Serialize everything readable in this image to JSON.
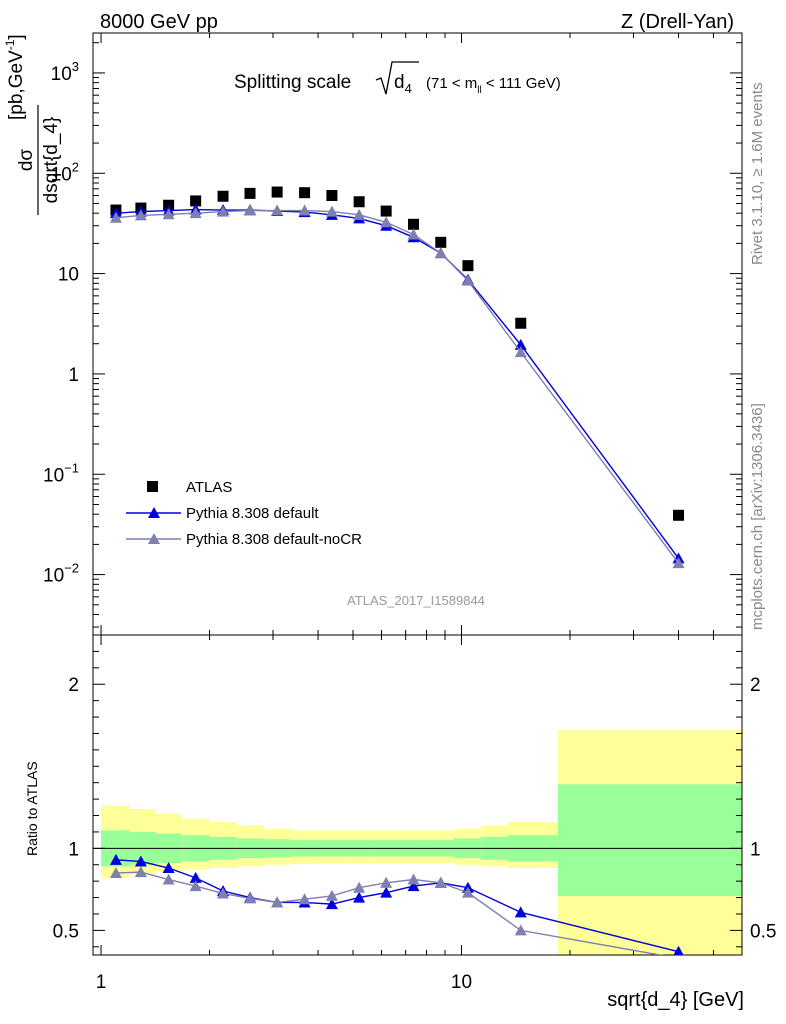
{
  "header": {
    "left": "8000 GeV pp",
    "right": "Z (Drell-Yan)"
  },
  "side_labels": {
    "rivet": "Rivet 3.1.10, ≥ 1.6M events",
    "mcplots": "mcplots.cern.ch [arXiv:1306.3436]"
  },
  "chart_data": [
    {
      "type": "scatter",
      "panel": "main",
      "title": "Splitting scale",
      "title_symbol": "d",
      "title_symbol_sub": "4",
      "title_range_pre": "(71 < m",
      "title_range_sub": "ll",
      "title_range_post": " < 111 GeV)",
      "ylabel_num": "dσ",
      "ylabel_den": "dsqrt{d_4}",
      "ylabel_unit": "[pb,GeV",
      "ylabel_unit_sup": "-1",
      "ylabel_unit_close": "]",
      "xscale": "log",
      "yscale": "log",
      "xlim": [
        0.95,
        60
      ],
      "ylim": [
        0.0025,
        2500
      ],
      "yticks": [
        {
          "value": 1000,
          "base": "10",
          "exp": "3"
        },
        {
          "value": 100,
          "base": "10",
          "exp": "2"
        },
        {
          "value": 10,
          "base": "10",
          "exp": ""
        },
        {
          "value": 1,
          "base": "1",
          "exp": ""
        },
        {
          "value": 0.1,
          "base": "10",
          "exp": "−1"
        },
        {
          "value": 0.01,
          "base": "10",
          "exp": "−2"
        }
      ],
      "legend": [
        "ATLAS",
        "Pythia 8.308 default",
        "Pythia 8.308 default-noCR"
      ],
      "watermark": "ATLAS_2017_I1589844",
      "x": [
        1.1,
        1.29,
        1.54,
        1.83,
        2.18,
        2.59,
        3.08,
        3.67,
        4.37,
        5.2,
        6.18,
        7.36,
        8.76,
        10.42,
        14.6,
        40.0
      ],
      "series": [
        {
          "name": "ATLAS",
          "color": "#000000",
          "marker": "square",
          "values": [
            43,
            45,
            48,
            53,
            59,
            63,
            65,
            64,
            60,
            52,
            42,
            31,
            20.5,
            12,
            3.2,
            0.039
          ]
        },
        {
          "name": "Pythia 8.308 default",
          "color": "#0000dd",
          "marker": "triangle",
          "values": [
            40,
            41.5,
            42.5,
            43.5,
            43,
            43,
            42,
            41,
            38.5,
            35.5,
            30,
            23,
            16,
            8.7,
            1.95,
            0.0145
          ]
        },
        {
          "name": "Pythia 8.308 default-noCR",
          "color": "#7f7fb0",
          "marker": "triangle",
          "values": [
            36,
            38,
            39,
            40,
            41.5,
            42.5,
            42.5,
            42.5,
            41.5,
            38.5,
            32.5,
            24.5,
            16,
            8.5,
            1.65,
            0.013
          ]
        }
      ]
    },
    {
      "type": "line",
      "panel": "ratio",
      "ylabel": "Ratio to ATLAS",
      "xlabel": "sqrt{d_4} [GeV]",
      "xscale": "log",
      "xlim": [
        0.95,
        60
      ],
      "ylim": [
        0.35,
        2.3
      ],
      "yticks": [
        0.5,
        1,
        2
      ],
      "ytick_labels": [
        "0.5",
        "1",
        "2"
      ],
      "xticks": [
        1,
        10
      ],
      "xtick_labels": [
        "1",
        "10"
      ],
      "bands": {
        "edges": [
          1.0,
          1.2,
          1.42,
          1.68,
          2.0,
          2.38,
          2.83,
          3.36,
          4.0,
          4.76,
          5.66,
          6.73,
          8.0,
          9.51,
          11.3,
          13.45,
          18.5,
          60
        ],
        "inner_lo": [
          0.89,
          0.9,
          0.91,
          0.92,
          0.93,
          0.94,
          0.945,
          0.95,
          0.95,
          0.95,
          0.95,
          0.95,
          0.95,
          0.94,
          0.93,
          0.92,
          0.71
        ],
        "inner_hi": [
          1.11,
          1.1,
          1.09,
          1.08,
          1.07,
          1.06,
          1.055,
          1.05,
          1.05,
          1.05,
          1.05,
          1.05,
          1.05,
          1.06,
          1.07,
          1.08,
          1.39
        ],
        "outer_lo": [
          0.82,
          0.84,
          0.86,
          0.87,
          0.88,
          0.89,
          0.9,
          0.905,
          0.91,
          0.91,
          0.91,
          0.91,
          0.91,
          0.9,
          0.89,
          0.88,
          0.3
        ],
        "outer_hi": [
          1.26,
          1.24,
          1.21,
          1.18,
          1.16,
          1.14,
          1.12,
          1.11,
          1.11,
          1.11,
          1.11,
          1.11,
          1.11,
          1.12,
          1.14,
          1.16,
          1.72
        ],
        "inner_color": "#99ff99",
        "outer_color": "#ffff99"
      },
      "series": [
        {
          "name": "Pythia 8.308 default",
          "color": "#0000dd",
          "values": [
            0.93,
            0.92,
            0.88,
            0.82,
            0.74,
            0.7,
            0.67,
            0.67,
            0.66,
            0.7,
            0.73,
            0.77,
            0.79,
            0.76,
            0.61,
            0.37
          ]
        },
        {
          "name": "Pythia 8.308 default-noCR",
          "color": "#7f7fb0",
          "values": [
            0.85,
            0.855,
            0.81,
            0.77,
            0.725,
            0.695,
            0.67,
            0.69,
            0.71,
            0.76,
            0.79,
            0.81,
            0.79,
            0.73,
            0.5,
            0.33
          ]
        }
      ]
    }
  ]
}
